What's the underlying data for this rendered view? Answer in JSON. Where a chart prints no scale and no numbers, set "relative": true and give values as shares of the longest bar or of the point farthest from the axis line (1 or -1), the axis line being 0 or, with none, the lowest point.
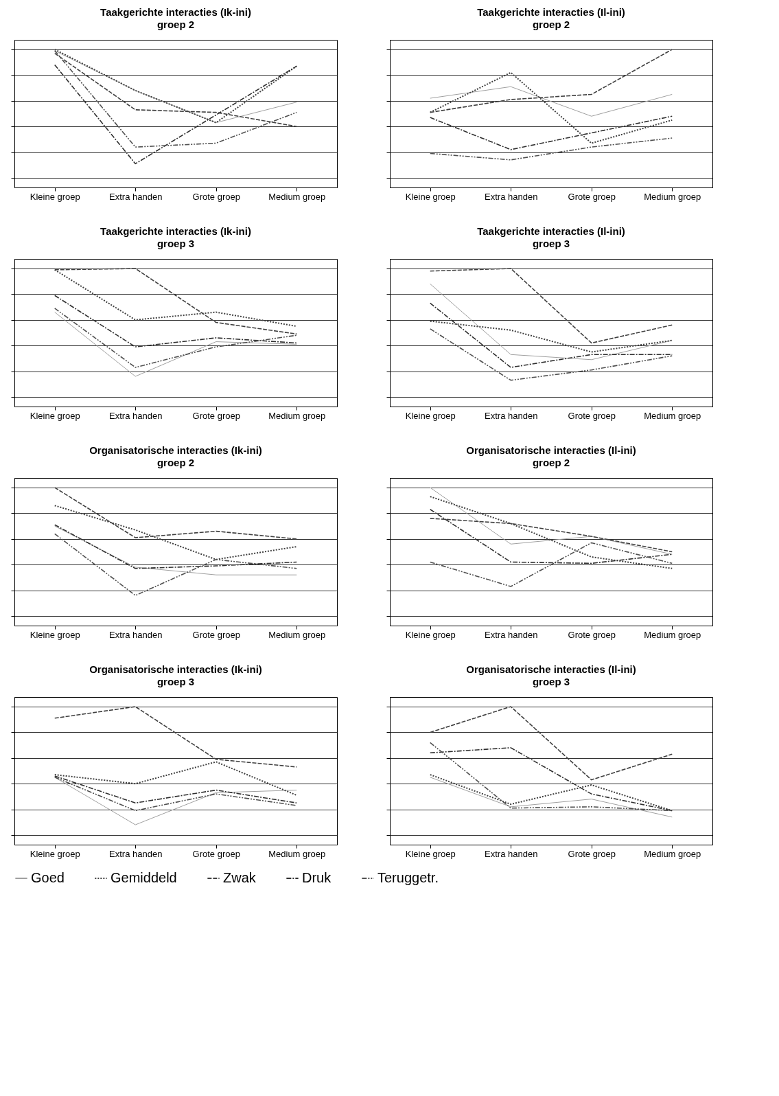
{
  "chart_data": [
    {
      "type": "line",
      "title": "Taakgerichte interacties (Ik-ini)",
      "subtitle": "groep 2",
      "categories": [
        "Kleine groep",
        "Extra handen",
        "Grote groep",
        "Medium groep"
      ],
      "relative": true,
      "grid": "y",
      "legend": "bottom",
      "series": [
        {
          "name": "Goed",
          "color": "#a0a0a0",
          "line_style": "solid",
          "values": [
            0.99,
            0.68,
            0.43,
            0.59
          ]
        },
        {
          "name": "Gemiddeld",
          "color": "#404040",
          "line_style": "dotted",
          "values": [
            1.0,
            0.68,
            0.43,
            0.87
          ]
        },
        {
          "name": "Zwak",
          "color": "#404040",
          "line_style": "dashed",
          "values": [
            0.97,
            0.53,
            0.51,
            0.4
          ]
        },
        {
          "name": "Druk",
          "color": "#303030",
          "line_style": "dashed",
          "values": [
            0.88,
            0.11,
            0.49,
            0.87
          ]
        },
        {
          "name": "Teruggetr.",
          "color": "#505050",
          "line_style": "dashed",
          "values": [
            0.99,
            0.24,
            0.27,
            0.51
          ]
        }
      ]
    },
    {
      "type": "line",
      "title": "Taakgerichte interacties (Il-ini)",
      "subtitle": "groep 2",
      "categories": [
        "Kleine groep",
        "Extra handen",
        "Grote groep",
        "Medium groep"
      ],
      "relative": true,
      "grid": "y",
      "legend": "bottom",
      "series": [
        {
          "name": "Goed",
          "color": "#a0a0a0",
          "line_style": "solid",
          "values": [
            0.62,
            0.71,
            0.48,
            0.65
          ]
        },
        {
          "name": "Gemiddeld",
          "color": "#404040",
          "line_style": "dotted",
          "values": [
            0.51,
            0.82,
            0.27,
            0.45
          ]
        },
        {
          "name": "Zwak",
          "color": "#404040",
          "line_style": "dashed",
          "values": [
            0.51,
            0.61,
            0.65,
            1.0
          ]
        },
        {
          "name": "Druk",
          "color": "#303030",
          "line_style": "dashed",
          "values": [
            0.47,
            0.22,
            0.35,
            0.48
          ]
        },
        {
          "name": "Teruggetr.",
          "color": "#505050",
          "line_style": "dashed",
          "values": [
            0.19,
            0.14,
            0.24,
            0.31
          ]
        }
      ]
    },
    {
      "type": "line",
      "title": "Taakgerichte interacties (Ik-ini)",
      "subtitle": "groep 3",
      "categories": [
        "Kleine groep",
        "Extra handen",
        "Grote groep",
        "Medium groep"
      ],
      "relative": true,
      "grid": "y",
      "legend": "bottom",
      "series": [
        {
          "name": "Goed",
          "color": "#a0a0a0",
          "line_style": "solid",
          "values": [
            0.66,
            0.16,
            0.43,
            0.41
          ]
        },
        {
          "name": "Gemiddeld",
          "color": "#404040",
          "line_style": "dotted",
          "values": [
            0.99,
            0.6,
            0.66,
            0.55
          ]
        },
        {
          "name": "Zwak",
          "color": "#404040",
          "line_style": "dashed",
          "values": [
            0.99,
            1.0,
            0.58,
            0.49
          ]
        },
        {
          "name": "Druk",
          "color": "#303030",
          "line_style": "dashed",
          "values": [
            0.79,
            0.39,
            0.46,
            0.42
          ]
        },
        {
          "name": "Teruggetr.",
          "color": "#505050",
          "line_style": "dashed",
          "values": [
            0.69,
            0.23,
            0.39,
            0.48
          ]
        }
      ]
    },
    {
      "type": "line",
      "title": "Taakgerichte interacties (Il-ini)",
      "subtitle": "groep 3",
      "categories": [
        "Kleine groep",
        "Extra handen",
        "Grote groep",
        "Medium groep"
      ],
      "relative": true,
      "grid": "y",
      "legend": "bottom",
      "series": [
        {
          "name": "Goed",
          "color": "#a0a0a0",
          "line_style": "solid",
          "values": [
            0.88,
            0.33,
            0.29,
            0.44
          ]
        },
        {
          "name": "Gemiddeld",
          "color": "#404040",
          "line_style": "dotted",
          "values": [
            0.59,
            0.52,
            0.35,
            0.44
          ]
        },
        {
          "name": "Zwak",
          "color": "#404040",
          "line_style": "dashed",
          "values": [
            0.98,
            1.0,
            0.42,
            0.56
          ]
        },
        {
          "name": "Druk",
          "color": "#303030",
          "line_style": "dashed",
          "values": [
            0.73,
            0.23,
            0.33,
            0.33
          ]
        },
        {
          "name": "Teruggetr.",
          "color": "#505050",
          "line_style": "dashed",
          "values": [
            0.53,
            0.13,
            0.21,
            0.32
          ]
        }
      ]
    },
    {
      "type": "line",
      "title": "Organisatorische interacties (Ik-ini)",
      "subtitle": "groep 2",
      "categories": [
        "Kleine groep",
        "Extra handen",
        "Grote groep",
        "Medium groep"
      ],
      "relative": true,
      "grid": "y",
      "legend": "bottom",
      "series": [
        {
          "name": "Goed",
          "color": "#a0a0a0",
          "line_style": "solid",
          "values": [
            0.7,
            0.38,
            0.32,
            0.32
          ]
        },
        {
          "name": "Gemiddeld",
          "color": "#404040",
          "line_style": "dotted",
          "values": [
            0.86,
            0.67,
            0.44,
            0.54
          ]
        },
        {
          "name": "Zwak",
          "color": "#404040",
          "line_style": "dashed",
          "values": [
            1.0,
            0.61,
            0.66,
            0.6
          ]
        },
        {
          "name": "Druk",
          "color": "#303030",
          "line_style": "dashed",
          "values": [
            0.71,
            0.37,
            0.39,
            0.42
          ]
        },
        {
          "name": "Teruggetr.",
          "color": "#505050",
          "line_style": "dashed",
          "values": [
            0.64,
            0.16,
            0.44,
            0.37
          ]
        }
      ]
    },
    {
      "type": "line",
      "title": "Organisatorische interacties (Il-ini)",
      "subtitle": "groep 2",
      "categories": [
        "Kleine groep",
        "Extra handen",
        "Grote groep",
        "Medium groep"
      ],
      "relative": true,
      "grid": "y",
      "legend": "bottom",
      "series": [
        {
          "name": "Goed",
          "color": "#a0a0a0",
          "line_style": "solid",
          "values": [
            1.0,
            0.56,
            0.62,
            0.48
          ]
        },
        {
          "name": "Gemiddeld",
          "color": "#404040",
          "line_style": "dotted",
          "values": [
            0.93,
            0.72,
            0.46,
            0.37
          ]
        },
        {
          "name": "Zwak",
          "color": "#404040",
          "line_style": "dashed",
          "values": [
            0.76,
            0.72,
            0.62,
            0.5
          ]
        },
        {
          "name": "Druk",
          "color": "#303030",
          "line_style": "dashed",
          "values": [
            0.83,
            0.42,
            0.41,
            0.48
          ]
        },
        {
          "name": "Teruggetr.",
          "color": "#505050",
          "line_style": "dashed",
          "values": [
            0.42,
            0.23,
            0.57,
            0.41
          ]
        }
      ]
    },
    {
      "type": "line",
      "title": "Organisatorische interacties (Ik-ini)",
      "subtitle": "groep 3",
      "categories": [
        "Kleine groep",
        "Extra handen",
        "Grote groep",
        "Medium groep"
      ],
      "relative": true,
      "grid": "y",
      "legend": "bottom",
      "series": [
        {
          "name": "Goed",
          "color": "#a0a0a0",
          "line_style": "solid",
          "values": [
            0.45,
            0.08,
            0.33,
            0.35
          ]
        },
        {
          "name": "Gemiddeld",
          "color": "#404040",
          "line_style": "dotted",
          "values": [
            0.47,
            0.4,
            0.57,
            0.31
          ]
        },
        {
          "name": "Zwak",
          "color": "#404040",
          "line_style": "dashed",
          "values": [
            0.91,
            1.0,
            0.59,
            0.53
          ]
        },
        {
          "name": "Druk",
          "color": "#303030",
          "line_style": "dashed",
          "values": [
            0.46,
            0.25,
            0.35,
            0.25
          ]
        },
        {
          "name": "Teruggetr.",
          "color": "#505050",
          "line_style": "dashed",
          "values": [
            0.45,
            0.19,
            0.32,
            0.23
          ]
        }
      ]
    },
    {
      "type": "line",
      "title": "Organisatorische interacties (Il-ini)",
      "subtitle": "groep 3",
      "categories": [
        "Kleine groep",
        "Extra handen",
        "Grote groep",
        "Medium groep"
      ],
      "relative": true,
      "grid": "y",
      "legend": "bottom",
      "series": [
        {
          "name": "Goed",
          "color": "#a0a0a0",
          "line_style": "solid",
          "values": [
            0.45,
            0.22,
            0.28,
            0.14
          ]
        },
        {
          "name": "Gemiddeld",
          "color": "#404040",
          "line_style": "dotted",
          "values": [
            0.47,
            0.24,
            0.39,
            0.19
          ]
        },
        {
          "name": "Zwak",
          "color": "#404040",
          "line_style": "dashed",
          "values": [
            0.8,
            1.0,
            0.43,
            0.63
          ]
        },
        {
          "name": "Druk",
          "color": "#303030",
          "line_style": "dashed",
          "values": [
            0.64,
            0.68,
            0.32,
            0.19
          ]
        },
        {
          "name": "Teruggetr.",
          "color": "#505050",
          "line_style": "dashed",
          "values": [
            0.72,
            0.21,
            0.22,
            0.19
          ]
        }
      ]
    }
  ]
}
